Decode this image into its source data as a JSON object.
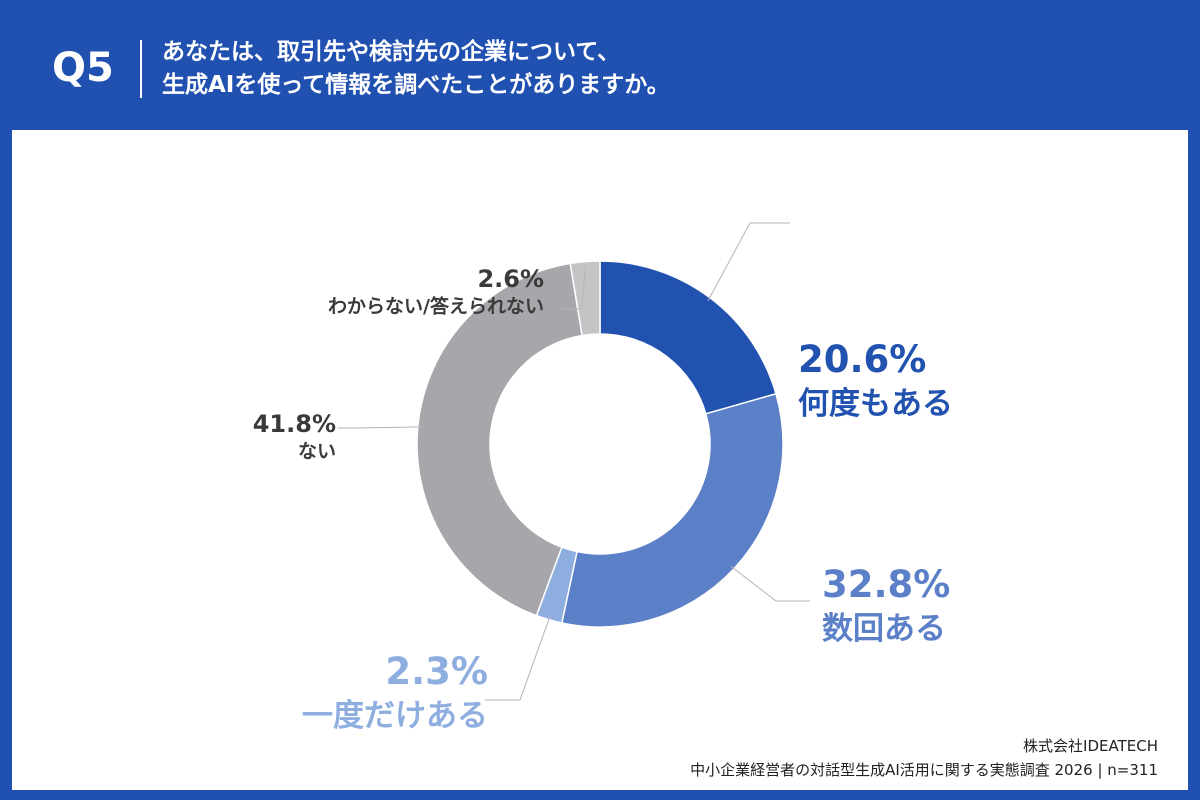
{
  "header": {
    "qnum": "Q5",
    "question_line1": "あなたは、取引先や検討先の企業について、",
    "question_line2": "生成AIを使って情報を調べたことがありますか。"
  },
  "footer": {
    "company": "株式会社IDEATECH",
    "survey": "中小企業経営者の対話型生成AI活用に関する実態調査 2026 | n=311"
  },
  "colors": {
    "header_bg": "#2050b0",
    "panel_bg": "#ffffff"
  },
  "chart_data": {
    "type": "pie",
    "donut": true,
    "unit": "%",
    "categories": [
      "何度もある",
      "数回ある",
      "一度だけある",
      "ない",
      "わからない/答えられない"
    ],
    "values": [
      20.6,
      32.8,
      2.3,
      41.8,
      2.6
    ],
    "value_labels": [
      "20.6%",
      "32.8%",
      "2.3%",
      "41.8%",
      "2.6%"
    ],
    "colors": [
      "#2152b0",
      "#5b80c8",
      "#8eaee0",
      "#a7a6aa",
      "#c4c3c6"
    ],
    "label_colors": [
      "#2152b0",
      "#5b80c8",
      "#8eaee0",
      "#3a3a3a",
      "#3a3a3a"
    ]
  }
}
